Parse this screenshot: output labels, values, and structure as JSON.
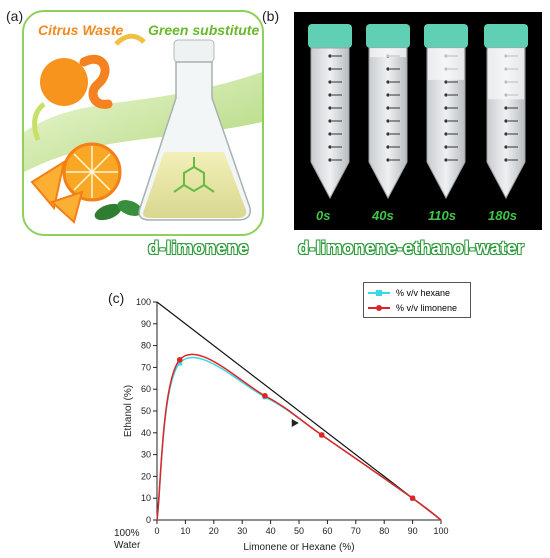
{
  "panel_labels": {
    "a": "(a)",
    "b": "(b)",
    "c": "(c)"
  },
  "panel_a": {
    "caption_left": "Citrus Waste",
    "caption_right": "Green substitute",
    "caption_bottom": "d-limonene"
  },
  "panel_b": {
    "tube_times": [
      "0s",
      "40s",
      "110s",
      "180s"
    ],
    "caption_bottom": "d-limonene-ethanol-water"
  },
  "corner_label": {
    "line1": "100%",
    "line2": "Water"
  },
  "chart_data": {
    "type": "line",
    "xlabel": "Limonene or Hexane (%)",
    "ylabel": "Ethanol (%)",
    "xlim": [
      0,
      100
    ],
    "ylim": [
      0,
      100
    ],
    "xticks": [
      0,
      10,
      20,
      30,
      40,
      50,
      60,
      70,
      80,
      90,
      100
    ],
    "yticks": [
      0,
      10,
      20,
      30,
      40,
      50,
      60,
      70,
      80,
      90,
      100
    ],
    "grid": false,
    "legend_position": "top-right",
    "boundary_line": {
      "x": [
        0,
        100
      ],
      "y": [
        100,
        0
      ]
    },
    "series": [
      {
        "name": "% v/v hexane",
        "color": "#38d8e6",
        "x": [
          0,
          8,
          38,
          58,
          90,
          100
        ],
        "y": [
          0,
          72,
          56.5,
          39,
          10,
          0
        ]
      },
      {
        "name": "% v/v limonene",
        "color": "#e02424",
        "x": [
          0,
          8,
          38,
          58,
          90,
          100
        ],
        "y": [
          0,
          73.5,
          57,
          39,
          10,
          0
        ]
      }
    ],
    "annotation_marker": {
      "x": 48.5,
      "y": 44.5,
      "shape": "triangle-right",
      "color": "#222222"
    }
  }
}
